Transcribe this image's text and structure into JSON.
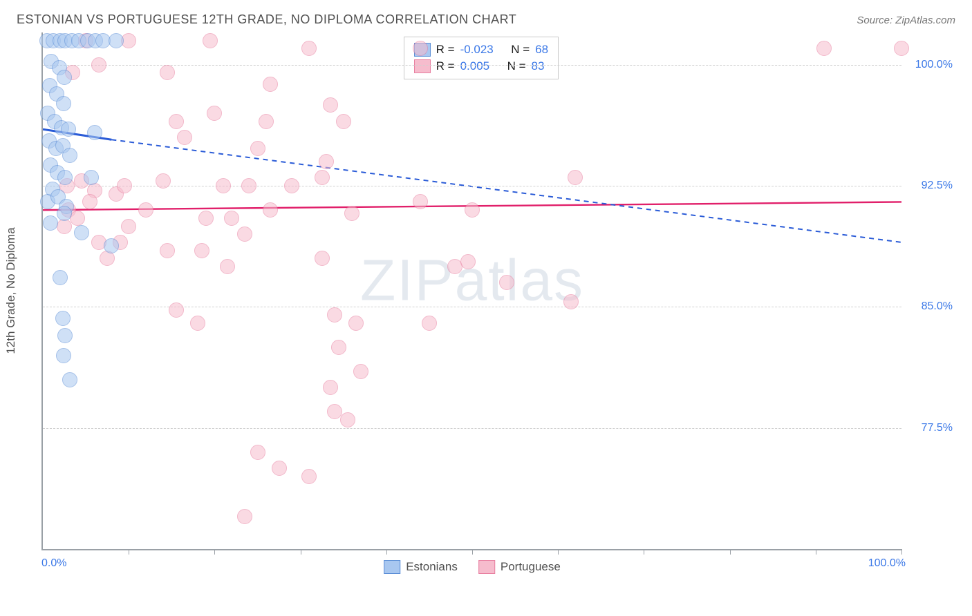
{
  "header": {
    "title": "ESTONIAN VS PORTUGUESE 12TH GRADE, NO DIPLOMA CORRELATION CHART",
    "source_prefix": "Source: ",
    "source_name": "ZipAtlas.com"
  },
  "watermark": {
    "zip": "ZIP",
    "atlas": "atlas"
  },
  "axes": {
    "y_title": "12th Grade, No Diploma",
    "x_min_label": "0.0%",
    "x_max_label": "100.0%",
    "x_min": 0,
    "x_max": 100,
    "y_min": 70,
    "y_max": 102,
    "y_ticks": [
      {
        "v": 100.0,
        "label": "100.0%"
      },
      {
        "v": 92.5,
        "label": "92.5%"
      },
      {
        "v": 85.0,
        "label": "85.0%"
      },
      {
        "v": 77.5,
        "label": "77.5%"
      }
    ],
    "x_tick_positions": [
      10,
      20,
      30,
      40,
      50,
      60,
      70,
      80,
      90,
      100
    ],
    "grid_color": "#d0d0d0",
    "axis_color": "#9aa0a6"
  },
  "series": {
    "estonians": {
      "label": "Estonians",
      "fill_color": "#a8c7f0",
      "stroke_color": "#5b8ed6",
      "fill_opacity": 0.55,
      "marker_radius": 11,
      "trend": {
        "slope": -0.023,
        "intercept_y_at_x0": 96.0,
        "line_color": "#2a5bd7",
        "dash": "6 5",
        "width": 2,
        "solid_until_x": 8
      },
      "R": "-0.023",
      "N": "68",
      "points": [
        [
          0.5,
          101.5
        ],
        [
          1.2,
          101.5
        ],
        [
          2.0,
          101.5
        ],
        [
          2.6,
          101.5
        ],
        [
          3.4,
          101.5
        ],
        [
          4.2,
          101.5
        ],
        [
          5.2,
          101.5
        ],
        [
          6.1,
          101.5
        ],
        [
          7.0,
          101.5
        ],
        [
          8.5,
          101.5
        ],
        [
          1.0,
          100.2
        ],
        [
          1.9,
          99.8
        ],
        [
          2.5,
          99.2
        ],
        [
          0.8,
          98.7
        ],
        [
          1.6,
          98.2
        ],
        [
          2.4,
          97.6
        ],
        [
          0.6,
          97.0
        ],
        [
          1.4,
          96.5
        ],
        [
          2.2,
          96.1
        ],
        [
          3.0,
          96.0
        ],
        [
          0.7,
          95.3
        ],
        [
          1.5,
          94.8
        ],
        [
          2.3,
          95.0
        ],
        [
          3.1,
          94.4
        ],
        [
          0.9,
          93.8
        ],
        [
          1.7,
          93.3
        ],
        [
          2.6,
          93.0
        ],
        [
          5.6,
          93.0
        ],
        [
          6.0,
          95.8
        ],
        [
          1.1,
          92.3
        ],
        [
          0.6,
          91.5
        ],
        [
          1.8,
          91.8
        ],
        [
          2.7,
          91.2
        ],
        [
          0.9,
          90.2
        ],
        [
          2.5,
          90.8
        ],
        [
          4.5,
          89.6
        ],
        [
          8.0,
          88.8
        ],
        [
          2.0,
          86.8
        ],
        [
          2.3,
          84.3
        ],
        [
          2.6,
          83.2
        ],
        [
          2.4,
          82.0
        ],
        [
          3.1,
          80.5
        ]
      ]
    },
    "portuguese": {
      "label": "Portuguese",
      "fill_color": "#f6bccd",
      "stroke_color": "#e87fa0",
      "fill_opacity": 0.55,
      "marker_radius": 11,
      "trend": {
        "slope": 0.005,
        "intercept_y_at_x0": 91.0,
        "line_color": "#e11f6a",
        "dash": "",
        "width": 2.4,
        "solid_until_x": 100
      },
      "R": "0.005",
      "N": "83",
      "points": [
        [
          5.0,
          101.5
        ],
        [
          10.0,
          101.5
        ],
        [
          19.5,
          101.5
        ],
        [
          31.0,
          101.0
        ],
        [
          44.0,
          101.0
        ],
        [
          91.0,
          101.0
        ],
        [
          100.0,
          101.0
        ],
        [
          3.5,
          99.5
        ],
        [
          6.5,
          100.0
        ],
        [
          14.5,
          99.5
        ],
        [
          26.5,
          98.8
        ],
        [
          26.0,
          96.5
        ],
        [
          25.0,
          94.8
        ],
        [
          33.5,
          97.5
        ],
        [
          35.0,
          96.5
        ],
        [
          2.8,
          92.5
        ],
        [
          4.5,
          92.8
        ],
        [
          6.0,
          92.2
        ],
        [
          8.5,
          92.0
        ],
        [
          9.5,
          92.5
        ],
        [
          15.5,
          96.5
        ],
        [
          20.0,
          97.0
        ],
        [
          21.0,
          92.5
        ],
        [
          24.0,
          92.5
        ],
        [
          10.0,
          90.0
        ],
        [
          12.0,
          91.0
        ],
        [
          14.0,
          92.8
        ],
        [
          16.5,
          95.5
        ],
        [
          19.0,
          90.5
        ],
        [
          22.0,
          90.5
        ],
        [
          23.5,
          89.5
        ],
        [
          26.5,
          91.0
        ],
        [
          29.0,
          92.5
        ],
        [
          32.5,
          93.0
        ],
        [
          33.0,
          94.0
        ],
        [
          36.0,
          90.8
        ],
        [
          32.5,
          88.0
        ],
        [
          44.0,
          91.5
        ],
        [
          50.0,
          91.0
        ],
        [
          9.0,
          89.0
        ],
        [
          14.5,
          88.5
        ],
        [
          18.5,
          88.5
        ],
        [
          21.5,
          87.5
        ],
        [
          6.5,
          89.0
        ],
        [
          7.5,
          88.0
        ],
        [
          48.0,
          87.5
        ],
        [
          49.5,
          87.8
        ],
        [
          54.0,
          86.5
        ],
        [
          61.5,
          85.3
        ],
        [
          62.0,
          93.0
        ],
        [
          15.5,
          84.8
        ],
        [
          18.0,
          84.0
        ],
        [
          34.0,
          84.5
        ],
        [
          36.5,
          84.0
        ],
        [
          45.0,
          84.0
        ],
        [
          34.5,
          82.5
        ],
        [
          37.0,
          81.0
        ],
        [
          33.5,
          80.0
        ],
        [
          34.0,
          78.5
        ],
        [
          35.5,
          78.0
        ],
        [
          25.0,
          76.0
        ],
        [
          27.5,
          75.0
        ],
        [
          31.0,
          74.5
        ],
        [
          23.5,
          72.0
        ],
        [
          3.0,
          91.0
        ],
        [
          4.0,
          90.5
        ],
        [
          5.5,
          91.5
        ],
        [
          2.5,
          90.0
        ]
      ]
    }
  },
  "legend_box": {
    "r_label": "R =",
    "n_label": "N ="
  },
  "styling": {
    "background": "#ffffff",
    "title_color": "#505050",
    "source_color": "#777777",
    "value_color": "#3b78e7",
    "watermark_color": "#cfd8e3"
  }
}
